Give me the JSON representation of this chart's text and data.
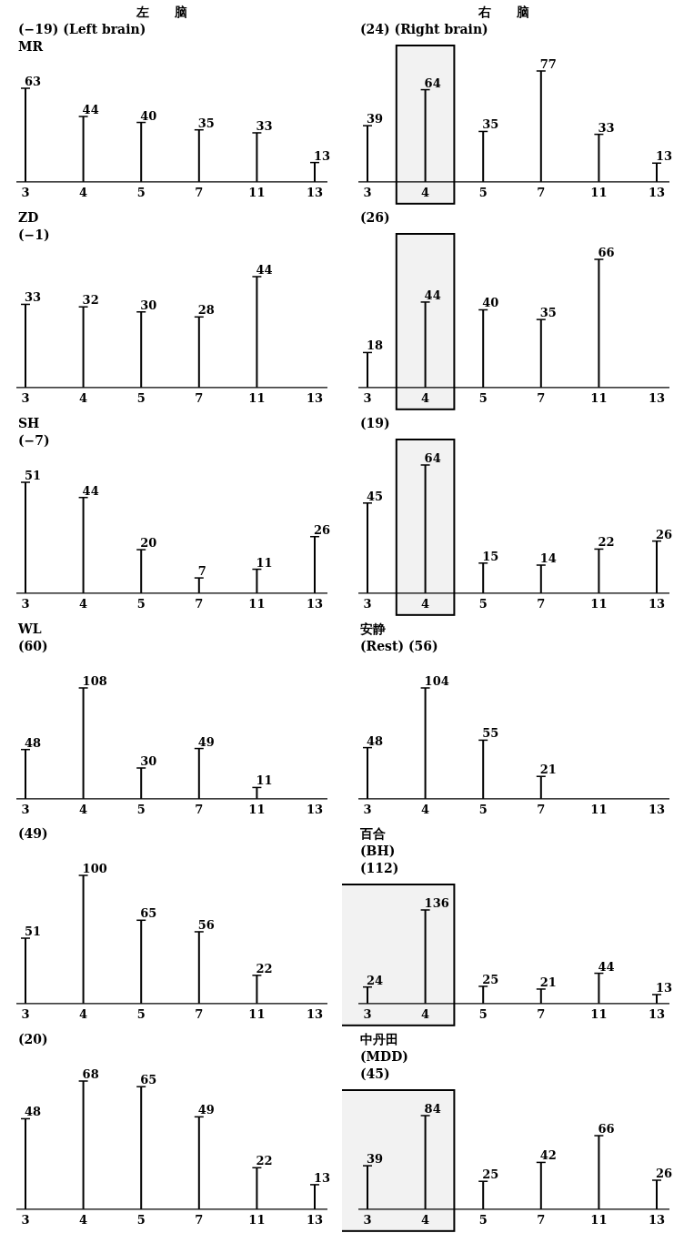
{
  "chart_data": [
    {
      "type": "bar",
      "title": "左　　脑",
      "subtitle": "(−19) (Left brain)",
      "annotations": [
        "MR"
      ],
      "categories": [
        "3",
        "4",
        "5",
        "7",
        "11",
        "13"
      ],
      "values": [
        63,
        44,
        40,
        35,
        33,
        13
      ],
      "color": "#000000",
      "data_labels": true
    },
    {
      "type": "bar",
      "title": "右　　脑",
      "subtitle": "(24) (Right brain)",
      "categories": [
        "3",
        "4",
        "5",
        "7",
        "11",
        "13"
      ],
      "values": [
        39,
        64,
        35,
        77,
        33,
        13
      ],
      "color": "#000000",
      "data_labels": true,
      "bands": [
        {
          "axis": "x",
          "from": "4",
          "to": "4"
        }
      ]
    },
    {
      "type": "bar",
      "title": "ZD",
      "subtitle": "(−1)",
      "categories": [
        "3",
        "4",
        "5",
        "7",
        "11",
        "13"
      ],
      "values": [
        33,
        32,
        30,
        28,
        44,
        null
      ],
      "color": "#000000",
      "data_labels": true
    },
    {
      "type": "bar",
      "subtitle": "(26)",
      "categories": [
        "3",
        "4",
        "5",
        "7",
        "11",
        "13"
      ],
      "values": [
        18,
        44,
        40,
        35,
        66,
        null
      ],
      "color": "#000000",
      "data_labels": true,
      "bands": [
        {
          "axis": "x",
          "from": "4",
          "to": "4"
        }
      ]
    },
    {
      "type": "bar",
      "title": "SH",
      "subtitle": "(−7)",
      "categories": [
        "3",
        "4",
        "5",
        "7",
        "11",
        "13"
      ],
      "values": [
        51,
        44,
        20,
        7,
        11,
        26
      ],
      "color": "#000000",
      "data_labels": true
    },
    {
      "type": "bar",
      "subtitle": "(19)",
      "categories": [
        "3",
        "4",
        "5",
        "7",
        "11",
        "13"
      ],
      "values": [
        45,
        64,
        15,
        14,
        22,
        26
      ],
      "color": "#000000",
      "data_labels": true,
      "bands": [
        {
          "axis": "x",
          "from": "4",
          "to": "4"
        }
      ]
    },
    {
      "type": "bar",
      "title": "WL",
      "subtitle": "(60)",
      "categories": [
        "3",
        "4",
        "5",
        "7",
        "11",
        "13"
      ],
      "values": [
        48,
        108,
        30,
        49,
        11,
        null
      ],
      "color": "#000000",
      "data_labels": true
    },
    {
      "type": "bar",
      "title": "安静",
      "subtitle": "(Rest) (56)",
      "categories": [
        "3",
        "4",
        "5",
        "7",
        "11",
        "13"
      ],
      "values": [
        48,
        104,
        55,
        21,
        null,
        null
      ],
      "color": "#000000",
      "data_labels": true
    },
    {
      "type": "bar",
      "subtitle": "(49)",
      "categories": [
        "3",
        "4",
        "5",
        "7",
        "11",
        "13"
      ],
      "values": [
        51,
        100,
        65,
        56,
        22,
        null
      ],
      "color": "#000000",
      "data_labels": true
    },
    {
      "type": "bar",
      "title": "百合",
      "subtitle": "(BH)",
      "annotations": [
        "(112)"
      ],
      "categories": [
        "3",
        "4",
        "5",
        "7",
        "11",
        "13"
      ],
      "values": [
        24,
        136,
        25,
        21,
        44,
        13
      ],
      "color": "#000000",
      "data_labels": true,
      "bands": [
        {
          "axis": "x",
          "from": "3",
          "to": "4"
        }
      ]
    },
    {
      "type": "bar",
      "subtitle": "(20)",
      "categories": [
        "3",
        "4",
        "5",
        "7",
        "11",
        "13"
      ],
      "values": [
        48,
        68,
        65,
        49,
        22,
        13
      ],
      "color": "#000000",
      "data_labels": true
    },
    {
      "type": "bar",
      "title": "中丹田",
      "subtitle": "(MDD)",
      "annotations": [
        "(45)"
      ],
      "categories": [
        "3",
        "4",
        "5",
        "7",
        "11",
        "13"
      ],
      "values": [
        39,
        84,
        25,
        42,
        66,
        26
      ],
      "color": "#000000",
      "data_labels": true,
      "bands": [
        {
          "axis": "x",
          "from": "3",
          "to": "4"
        }
      ]
    }
  ]
}
